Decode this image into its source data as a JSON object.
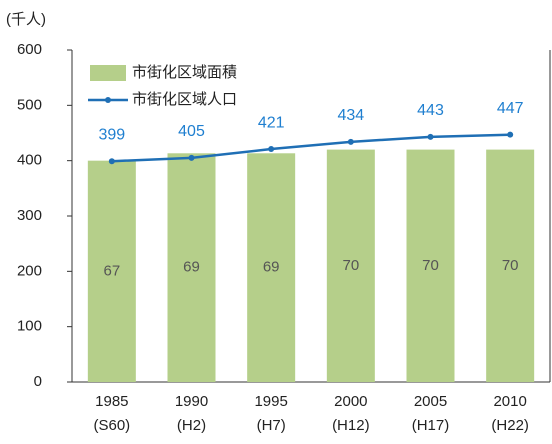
{
  "chart_data": {
    "type": "bar_line",
    "y_label": "(千人)",
    "categories": [
      [
        "1985",
        "(S60)"
      ],
      [
        "1990",
        "(H2)"
      ],
      [
        "1995",
        "(H7)"
      ],
      [
        "2000",
        "(H12)"
      ],
      [
        "2005",
        "(H17)"
      ],
      [
        "2010",
        "(H22)"
      ]
    ],
    "series": [
      {
        "name": "市街化区域面積",
        "kind": "bar",
        "color": "#b5cf8a",
        "label_color": "#555555",
        "axis": "y2",
        "values": [
          67,
          69,
          69,
          70,
          70,
          70
        ]
      },
      {
        "name": "市街化区域人口",
        "kind": "line",
        "color": "#1f6fb5",
        "label_color": "#1f7fd0",
        "values": [
          399,
          405,
          421,
          434,
          443,
          447
        ]
      }
    ],
    "ylim": [
      0,
      600
    ],
    "yticks": [
      0,
      100,
      200,
      300,
      400,
      500,
      600
    ],
    "y2lim": [
      7,
      97
    ]
  }
}
